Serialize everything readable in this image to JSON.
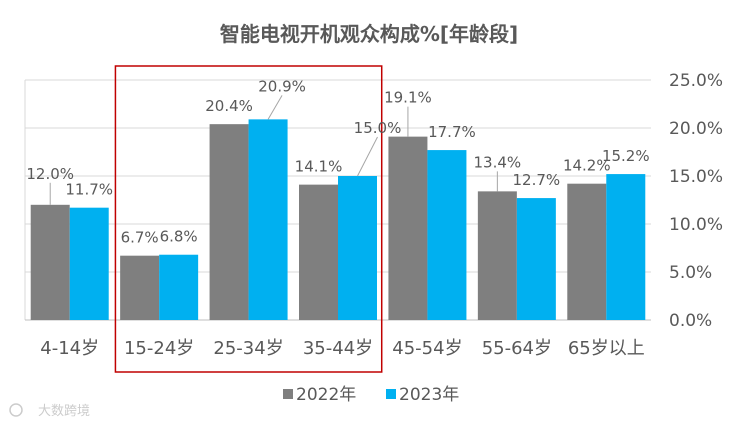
{
  "chart_data": {
    "type": "bar",
    "title": "智能电视开机观众构成%[年龄段]",
    "categories": [
      "4-14岁",
      "15-24岁",
      "25-34岁",
      "35-44岁",
      "45-54岁",
      "55-64岁",
      "65岁以上"
    ],
    "series": [
      {
        "name": "2022年",
        "color": "#7f7f7f",
        "values": [
          12.0,
          6.7,
          20.4,
          14.1,
          19.1,
          13.4,
          14.2
        ],
        "labels": [
          "12.0%",
          "6.7%",
          "20.4%",
          "14.1%",
          "19.1%",
          "13.4%",
          "14.2%"
        ]
      },
      {
        "name": "2023年",
        "color": "#00b0f0",
        "values": [
          11.7,
          6.8,
          20.9,
          15.0,
          17.7,
          12.7,
          15.2
        ],
        "labels": [
          "11.7%",
          "6.8%",
          "20.9%",
          "15.0%",
          "17.7%",
          "12.7%",
          "15.2%"
        ]
      }
    ],
    "ylim": [
      0,
      25
    ],
    "yticks": [
      "0.0%",
      "5.0%",
      "10.0%",
      "15.0%",
      "20.0%",
      "25.0%"
    ],
    "y_axis_side": "right",
    "legend_position": "bottom",
    "highlight": {
      "categories": [
        "15-24岁",
        "25-34岁",
        "35-44岁"
      ],
      "color": "#c00000"
    },
    "xlabel": "",
    "ylabel": ""
  },
  "watermark": "大数跨境"
}
